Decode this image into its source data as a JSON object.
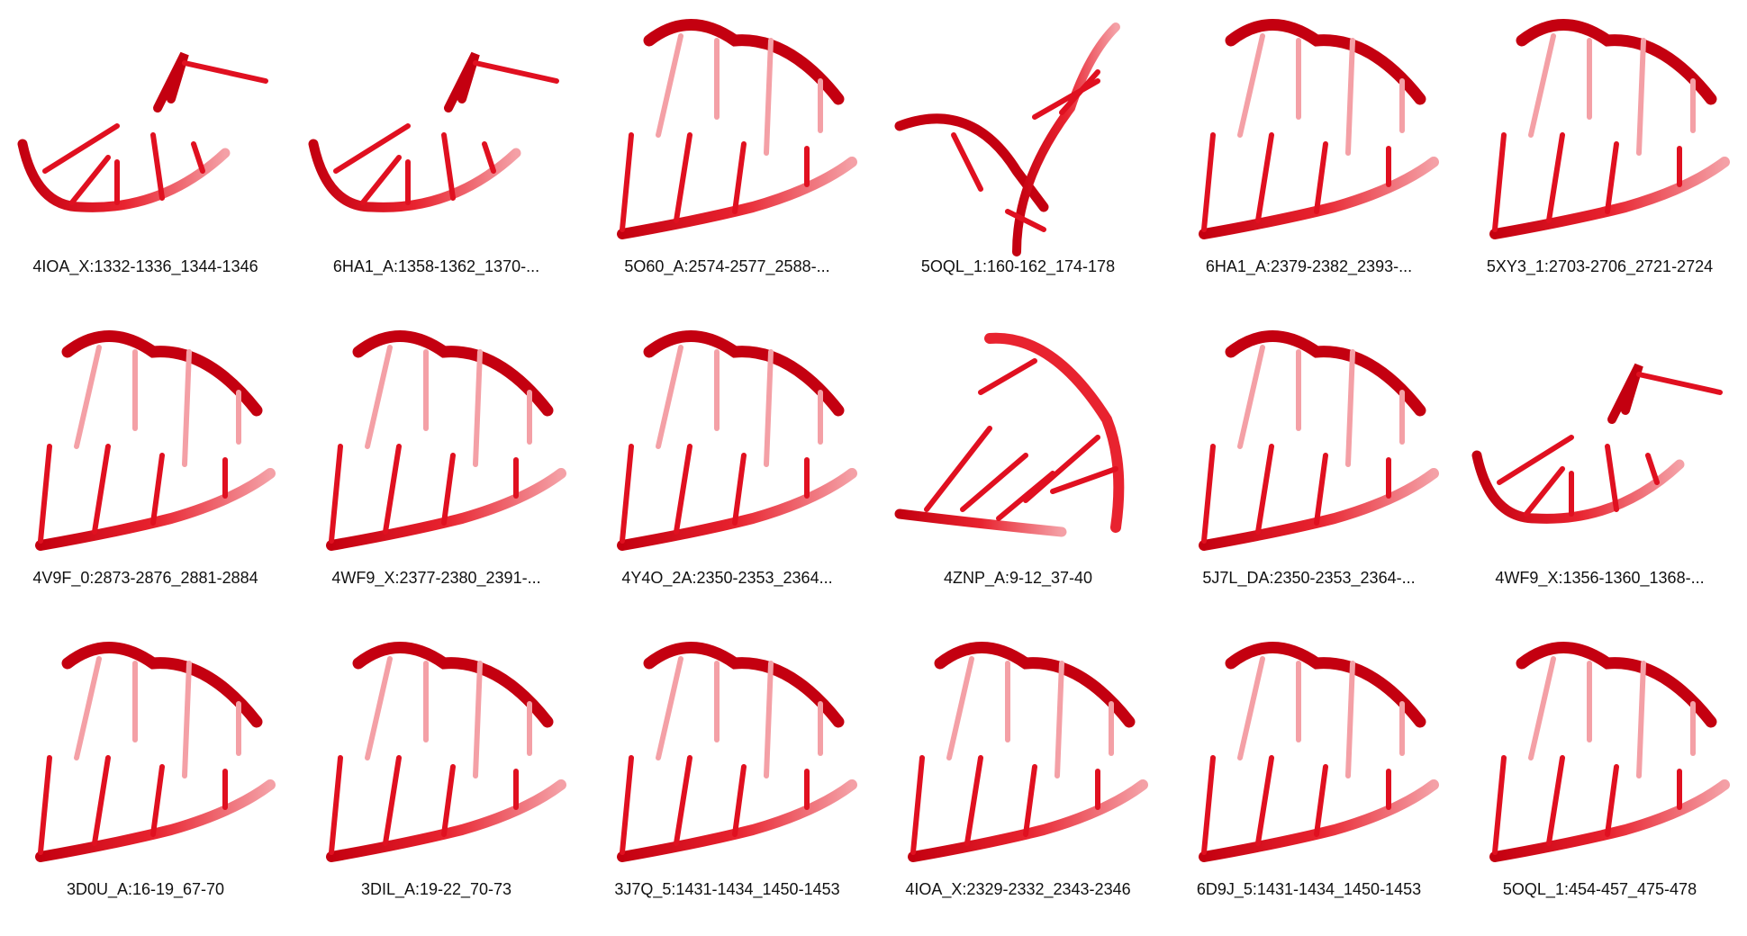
{
  "colors": {
    "strand_dark": "#c40010",
    "strand_mid": "#e8232f",
    "strand_light": "#f4a0a6",
    "rung": "#e01020"
  },
  "panels": [
    {
      "label": "4IOA_X:1332-1336_1344-1346",
      "shape": "hook"
    },
    {
      "label": "6HA1_A:1358-1362_1370-...",
      "shape": "hook"
    },
    {
      "label": "5O60_A:2574-2577_2588-...",
      "shape": "ladder"
    },
    {
      "label": "5OQL_1:160-162_174-178",
      "shape": "cross"
    },
    {
      "label": "6HA1_A:2379-2382_2393-...",
      "shape": "ladder"
    },
    {
      "label": "5XY3_1:2703-2706_2721-2724",
      "shape": "ladder"
    },
    {
      "label": "4V9F_0:2873-2876_2881-2884",
      "shape": "ladder"
    },
    {
      "label": "4WF9_X:2377-2380_2391-...",
      "shape": "ladder"
    },
    {
      "label": "4Y4O_2A:2350-2353_2364...",
      "shape": "ladder"
    },
    {
      "label": "4ZNP_A:9-12_37-40",
      "shape": "fan"
    },
    {
      "label": "5J7L_DA:2350-2353_2364-...",
      "shape": "ladder"
    },
    {
      "label": "4WF9_X:1356-1360_1368-...",
      "shape": "hook"
    },
    {
      "label": "3D0U_A:16-19_67-70",
      "shape": "ladder"
    },
    {
      "label": "3DIL_A:19-22_70-73",
      "shape": "ladder"
    },
    {
      "label": "3J7Q_5:1431-1434_1450-1453",
      "shape": "ladder"
    },
    {
      "label": "4IOA_X:2329-2332_2343-2346",
      "shape": "ladder"
    },
    {
      "label": "6D9J_5:1431-1434_1450-1453",
      "shape": "ladder"
    },
    {
      "label": "5OQL_1:454-457_475-478",
      "shape": "ladder"
    }
  ]
}
